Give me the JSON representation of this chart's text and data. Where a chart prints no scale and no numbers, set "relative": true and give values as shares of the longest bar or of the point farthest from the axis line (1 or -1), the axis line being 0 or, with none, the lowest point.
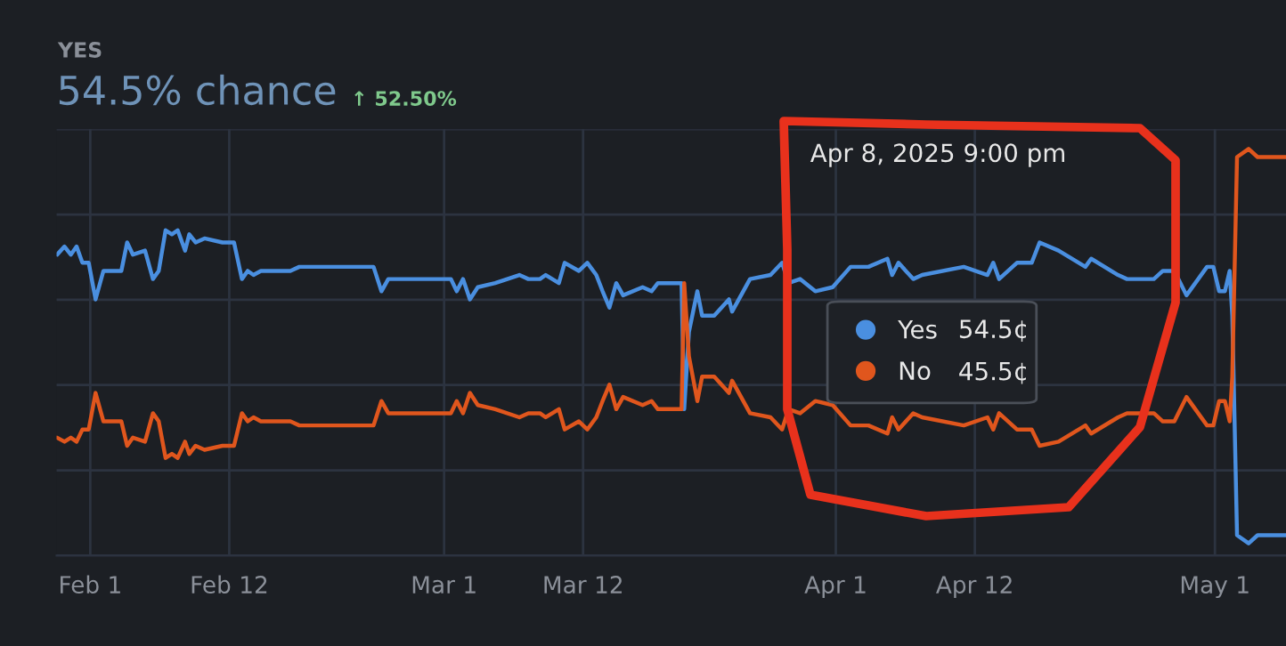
{
  "chart_data": {
    "type": "line",
    "title": "54.5% chance",
    "subtitle": "↑ 52.50%",
    "annotations": [
      "YES",
      "Apr 8, 2025 9:00 pm",
      "54.5¢",
      "45.5¢"
    ],
    "relative": true,
    "x": [
      "2025-01-29T09:00",
      "2025-01-29T23:00",
      "2025-01-30T11:00",
      "2025-01-30T22:00",
      "2025-01-31T09:00",
      "2025-01-31T21:00",
      "2025-02-01T10:00",
      "2025-02-02T01:00",
      "2025-02-03T11:00",
      "2025-02-03T22:00",
      "2025-02-04T09:00",
      "2025-02-05T08:00",
      "2025-02-05T23:00",
      "2025-02-06T10:00",
      "2025-02-06T23:00",
      "2025-02-07T11:00",
      "2025-02-07T22:00",
      "2025-02-08T12:00",
      "2025-02-08T20:00",
      "2025-02-09T08:00",
      "2025-02-10T01:00",
      "2025-02-11T11:00",
      "2025-02-12T09:00",
      "2025-02-13T00:00",
      "2025-02-13T11:00",
      "2025-02-13T22:00",
      "2025-02-14T12:00",
      "2025-02-16T20:00",
      "2025-02-17T13:00",
      "2025-02-18T23:00",
      "2025-02-23T10:00",
      "2025-02-24T01:00",
      "2025-02-24T14:00",
      "2025-03-01T13:00",
      "2025-03-02T00:00",
      "2025-03-02T12:00",
      "2025-03-03T01:00",
      "2025-03-03T16:00",
      "2025-03-05T01:00",
      "2025-03-06T23:00",
      "2025-03-07T16:00",
      "2025-03-08T14:00",
      "2025-03-09T01:00",
      "2025-03-10T02:00",
      "2025-03-10T13:00",
      "2025-03-11T16:00",
      "2025-03-12T08:00",
      "2025-03-13T01:00",
      "2025-03-13T13:00",
      "2025-03-14T02:00",
      "2025-03-14T15:00",
      "2025-03-15T04:00",
      "2025-03-16T17:00",
      "2025-03-17T10:00",
      "2025-03-17T22:00",
      "2025-03-19T19:00",
      "2025-03-20T00:00",
      "2025-03-20T09:00",
      "2025-03-21T01:00",
      "2025-03-21T10:00",
      "2025-03-22T09:00",
      "2025-03-23T13:00",
      "2025-03-23T19:00",
      "2025-03-25T05:00",
      "2025-03-26T20:00",
      "2025-03-27T18:00",
      "2025-03-28T06:00",
      "2025-03-29T04:00",
      "2025-03-30T09:00",
      "2025-03-31T18:00",
      "2025-04-02T04:00",
      "2025-04-03T14:00",
      "2025-04-05T02:00",
      "2025-04-05T11:00",
      "2025-04-05T23:00",
      "2025-04-07T03:00",
      "2025-04-07T20:00",
      "2025-04-11T03:00",
      "2025-04-13T00:00",
      "2025-04-13T11:00",
      "2025-04-13T22:00",
      "2025-04-15T08:00",
      "2025-04-16T12:00",
      "2025-04-17T03:00",
      "2025-04-18T15:00",
      "2025-04-20T18:00",
      "2025-04-21T05:00",
      "2025-04-23T08:00",
      "2025-04-24T01:00",
      "2025-04-26T04:00",
      "2025-04-26T21:00",
      "2025-04-27T19:00",
      "2025-04-28T18:00",
      "2025-04-30T09:00",
      "2025-04-30T21:00",
      "2025-05-01T08:00",
      "2025-05-01T19:00",
      "2025-05-02T04:00",
      "2025-05-02T09:00",
      "2025-05-02T18:00",
      "2025-05-03T16:00",
      "2025-05-04T09:00",
      "2025-05-06T15:00"
    ],
    "series": [
      {
        "name": "Yes",
        "color": "#4a8fe0",
        "values": [
          0.74,
          0.76,
          0.74,
          0.76,
          0.72,
          0.72,
          0.63,
          0.7,
          0.7,
          0.77,
          0.74,
          0.75,
          0.68,
          0.7,
          0.8,
          0.79,
          0.8,
          0.75,
          0.79,
          0.77,
          0.78,
          0.77,
          0.77,
          0.68,
          0.7,
          0.69,
          0.7,
          0.7,
          0.71,
          0.71,
          0.71,
          0.65,
          0.68,
          0.68,
          0.65,
          0.68,
          0.63,
          0.66,
          0.67,
          0.69,
          0.68,
          0.68,
          0.69,
          0.67,
          0.72,
          0.7,
          0.72,
          0.69,
          0.65,
          0.61,
          0.67,
          0.64,
          0.66,
          0.65,
          0.67,
          0.67,
          0.36,
          0.55,
          0.65,
          0.59,
          0.59,
          0.63,
          0.6,
          0.68,
          0.69,
          0.72,
          0.67,
          0.68,
          0.65,
          0.66,
          0.71,
          0.71,
          0.73,
          0.69,
          0.72,
          0.68,
          0.69,
          0.71,
          0.69,
          0.72,
          0.68,
          0.72,
          0.72,
          0.77,
          0.75,
          0.71,
          0.73,
          0.69,
          0.68,
          0.68,
          0.7,
          0.7,
          0.64,
          0.71,
          0.71,
          0.65,
          0.65,
          0.7,
          0.59,
          0.05,
          0.03,
          0.05,
          0.05
        ]
      },
      {
        "name": "No",
        "color": "#e0561d",
        "values": [
          0.29,
          0.28,
          0.29,
          0.28,
          0.31,
          0.31,
          0.4,
          0.33,
          0.33,
          0.27,
          0.29,
          0.28,
          0.35,
          0.33,
          0.24,
          0.25,
          0.24,
          0.28,
          0.25,
          0.27,
          0.26,
          0.27,
          0.27,
          0.35,
          0.33,
          0.34,
          0.33,
          0.33,
          0.32,
          0.32,
          0.32,
          0.38,
          0.35,
          0.35,
          0.38,
          0.35,
          0.4,
          0.37,
          0.36,
          0.34,
          0.35,
          0.35,
          0.34,
          0.36,
          0.31,
          0.33,
          0.31,
          0.34,
          0.38,
          0.42,
          0.36,
          0.39,
          0.37,
          0.38,
          0.36,
          0.36,
          0.67,
          0.49,
          0.38,
          0.44,
          0.44,
          0.4,
          0.43,
          0.35,
          0.34,
          0.31,
          0.36,
          0.35,
          0.38,
          0.37,
          0.32,
          0.32,
          0.3,
          0.34,
          0.31,
          0.35,
          0.34,
          0.32,
          0.34,
          0.31,
          0.35,
          0.31,
          0.31,
          0.27,
          0.28,
          0.32,
          0.3,
          0.34,
          0.35,
          0.35,
          0.33,
          0.33,
          0.39,
          0.32,
          0.32,
          0.38,
          0.38,
          0.33,
          0.44,
          0.98,
          1.0,
          0.98,
          0.98
        ]
      }
    ],
    "xlim": [
      "2025-01-29T08:00",
      "2025-05-06T15:00"
    ],
    "xticks": [
      {
        "value": "2025-02-01",
        "label": "Feb 1"
      },
      {
        "value": "2025-02-12",
        "label": "Feb 12"
      },
      {
        "value": "2025-03-01",
        "label": "Mar 1"
      },
      {
        "value": "2025-03-12",
        "label": "Mar 12"
      },
      {
        "value": "2025-04-01",
        "label": "Apr 1"
      },
      {
        "value": "2025-04-12",
        "label": "Apr 12"
      },
      {
        "value": "2025-05-01",
        "label": "May 1"
      }
    ],
    "tick_labels": "x",
    "grid": true,
    "legend": "center",
    "marker": "none",
    "line_style": "solid"
  }
}
